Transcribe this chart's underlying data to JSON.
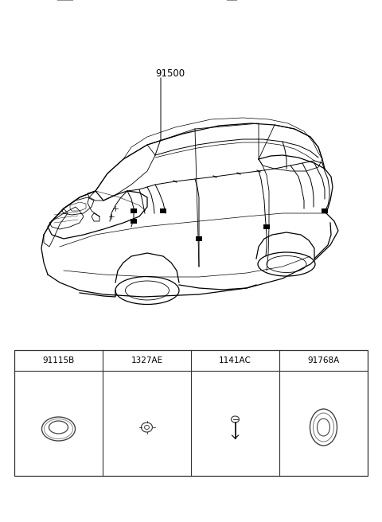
{
  "bg_color": "#ffffff",
  "fig_width": 4.8,
  "fig_height": 6.56,
  "dpi": 100,
  "car_label": "91500",
  "parts": [
    {
      "code": "91115B"
    },
    {
      "code": "1327AE"
    },
    {
      "code": "1141AC"
    },
    {
      "code": "91768A"
    }
  ],
  "lw_body": 0.9,
  "lw_detail": 0.6,
  "lw_wire": 0.7
}
